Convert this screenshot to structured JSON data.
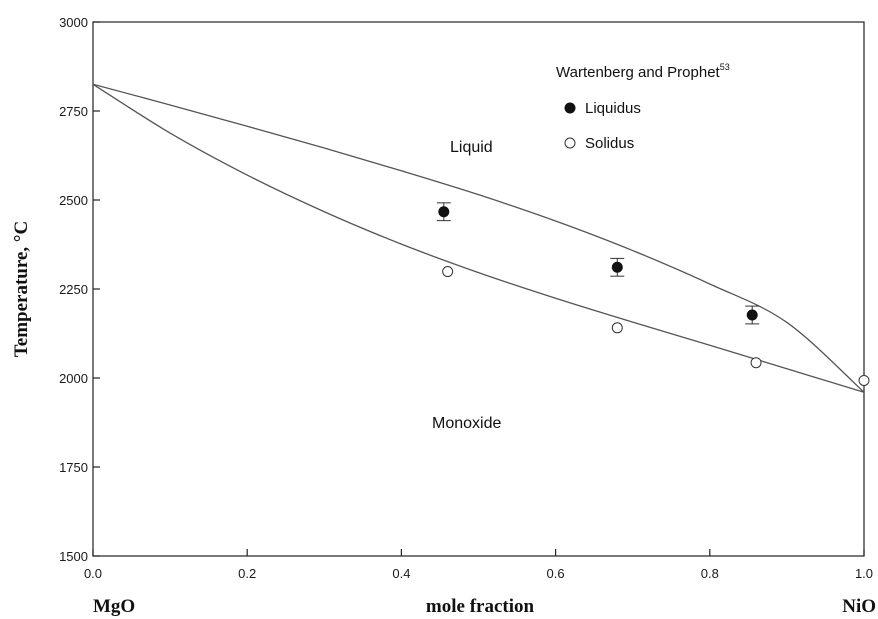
{
  "chart_data": {
    "type": "scatter",
    "ylabel": "Temperature, °C",
    "xlabel": "mole fraction",
    "x_end_labels": {
      "left": "MgO",
      "right": "NiO"
    },
    "xlim": [
      0.0,
      1.0
    ],
    "ylim": [
      1500,
      3000
    ],
    "x_ticks": [
      "0.0",
      "0.2",
      "0.4",
      "0.6",
      "0.8",
      "1.0"
    ],
    "y_ticks": [
      "1500",
      "1750",
      "2000",
      "2250",
      "2500",
      "2750",
      "3000"
    ],
    "grid": false,
    "region_labels": {
      "upper": "Liquid",
      "lower": "Monoxide"
    },
    "legend": {
      "title": "Wartenberg and Prophet",
      "title_superscript": "53",
      "placement": "top-right"
    },
    "curves": [
      {
        "role": "liquidus-line",
        "x": [
          0.0,
          0.1,
          0.2,
          0.3,
          0.4,
          0.5,
          0.6,
          0.7,
          0.8,
          0.9,
          1.0
        ],
        "y": [
          2825,
          2767,
          2707,
          2646,
          2582,
          2515,
          2441,
          2358,
          2264,
          2156,
          1960
        ]
      },
      {
        "role": "solidus-line",
        "x": [
          0.0,
          0.1,
          0.2,
          0.3,
          0.4,
          0.5,
          0.6,
          0.7,
          0.8,
          0.9,
          1.0
        ],
        "y": [
          2825,
          2688,
          2570,
          2467,
          2376,
          2296,
          2224,
          2157,
          2092,
          2026,
          1960
        ]
      }
    ],
    "series": [
      {
        "name": "Liquidus",
        "marker": "filled-circle",
        "points": [
          {
            "x": 0.455,
            "y": 2467,
            "err": 25
          },
          {
            "x": 0.68,
            "y": 2311,
            "err": 25
          },
          {
            "x": 0.855,
            "y": 2177,
            "err": 25
          }
        ]
      },
      {
        "name": "Solidus",
        "marker": "open-circle",
        "points": [
          {
            "x": 0.46,
            "y": 2299
          },
          {
            "x": 0.68,
            "y": 2141
          },
          {
            "x": 0.86,
            "y": 2043
          },
          {
            "x": 1.0,
            "y": 1993
          }
        ]
      }
    ]
  }
}
